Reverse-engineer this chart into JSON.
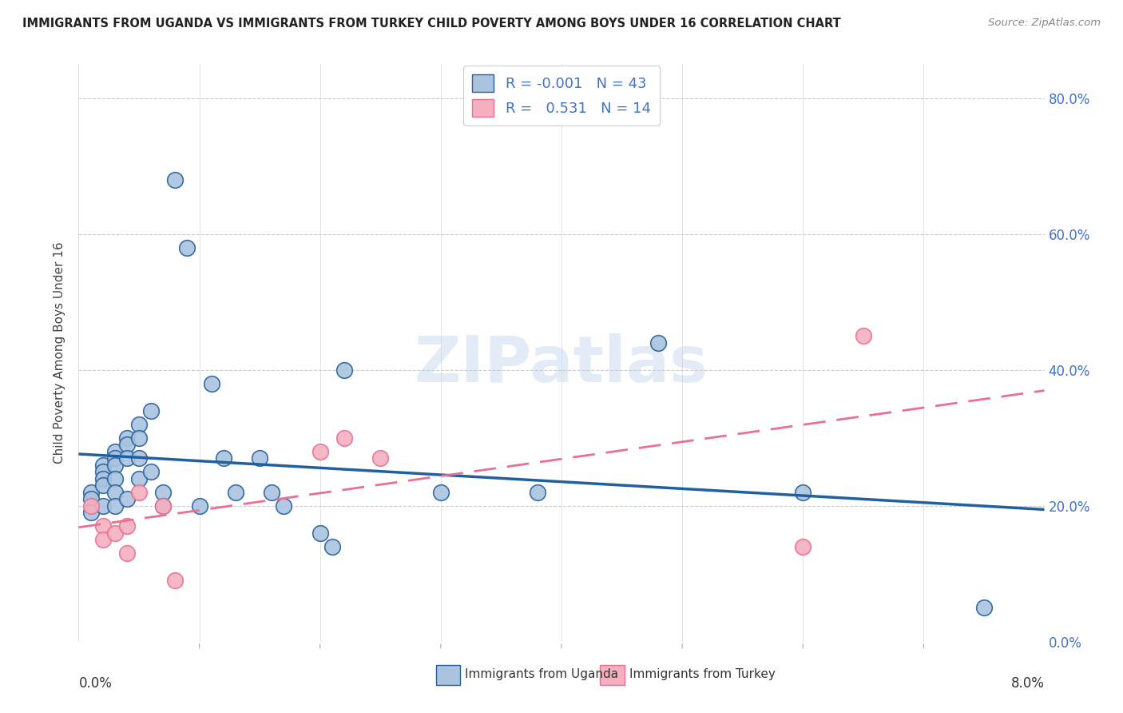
{
  "title": "IMMIGRANTS FROM UGANDA VS IMMIGRANTS FROM TURKEY CHILD POVERTY AMONG BOYS UNDER 16 CORRELATION CHART",
  "source": "Source: ZipAtlas.com",
  "ylabel": "Child Poverty Among Boys Under 16",
  "r_uganda": "-0.001",
  "n_uganda": "43",
  "r_turkey": "0.531",
  "n_turkey": "14",
  "color_uganda": "#aac4e0",
  "color_turkey": "#f5afc0",
  "color_uganda_dark": "#2a6099",
  "color_turkey_dark": "#e87090",
  "color_uganda_line": "#2060a0",
  "color_turkey_line": "#e87090",
  "uganda_x": [
    0.001,
    0.001,
    0.001,
    0.002,
    0.002,
    0.002,
    0.002,
    0.002,
    0.003,
    0.003,
    0.003,
    0.003,
    0.003,
    0.003,
    0.004,
    0.004,
    0.004,
    0.004,
    0.005,
    0.005,
    0.005,
    0.005,
    0.006,
    0.006,
    0.007,
    0.007,
    0.008,
    0.009,
    0.01,
    0.011,
    0.012,
    0.013,
    0.015,
    0.016,
    0.017,
    0.02,
    0.021,
    0.022,
    0.03,
    0.038,
    0.048,
    0.06,
    0.075
  ],
  "uganda_y": [
    0.22,
    0.21,
    0.19,
    0.26,
    0.25,
    0.24,
    0.23,
    0.2,
    0.28,
    0.27,
    0.26,
    0.24,
    0.22,
    0.2,
    0.3,
    0.29,
    0.27,
    0.21,
    0.32,
    0.3,
    0.27,
    0.24,
    0.34,
    0.25,
    0.22,
    0.2,
    0.68,
    0.58,
    0.2,
    0.38,
    0.27,
    0.22,
    0.27,
    0.22,
    0.2,
    0.16,
    0.14,
    0.4,
    0.22,
    0.22,
    0.44,
    0.22,
    0.05
  ],
  "turkey_x": [
    0.001,
    0.002,
    0.002,
    0.003,
    0.004,
    0.004,
    0.005,
    0.007,
    0.008,
    0.02,
    0.022,
    0.025,
    0.06,
    0.065
  ],
  "turkey_y": [
    0.2,
    0.17,
    0.15,
    0.16,
    0.17,
    0.13,
    0.22,
    0.2,
    0.09,
    0.28,
    0.3,
    0.27,
    0.14,
    0.45
  ],
  "xlim": [
    0.0,
    0.08
  ],
  "ylim": [
    0.0,
    0.85
  ],
  "yticks": [
    0.0,
    0.2,
    0.4,
    0.6,
    0.8
  ],
  "yticklabels": [
    "0.0%",
    "20.0%",
    "40.0%",
    "60.0%",
    "80.0%"
  ],
  "xtick_label_left": "0.0%",
  "xtick_label_right": "8.0%",
  "legend_uganda": "Immigrants from Uganda",
  "legend_turkey": "Immigrants from Turkey",
  "watermark": "ZIPatlas",
  "background_color": "#ffffff",
  "grid_color": "#cccccc",
  "right_axis_color": "#4472c4"
}
